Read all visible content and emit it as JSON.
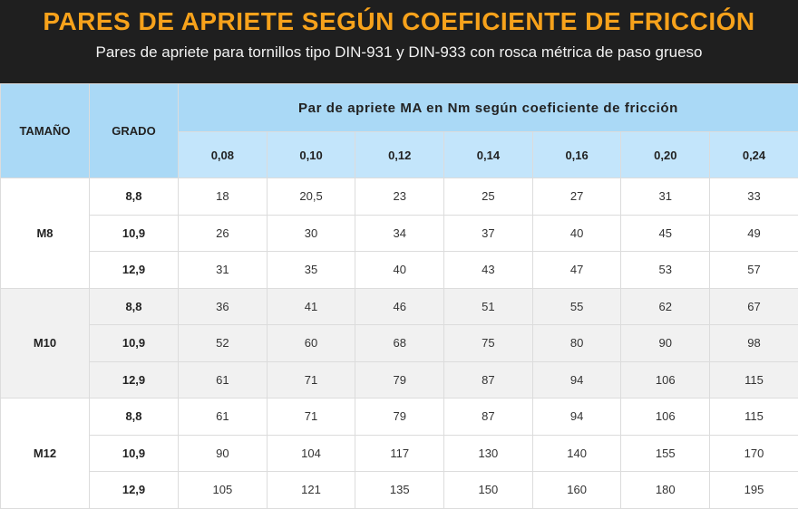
{
  "header": {
    "title": "PARES DE APRIETE SEGÚN COEFICIENTE DE FRICCIÓN",
    "subtitle": "Pares de apriete para tornillos tipo DIN-931 y DIN-933 con rosca métrica de paso grueso"
  },
  "table": {
    "size_header": "TAMAÑO",
    "grade_header": "GRADO",
    "group_header": "Par de apriete MA en Nm según coeficiente de fricción",
    "friction": [
      "0,08",
      "0,10",
      "0,12",
      "0,14",
      "0,16",
      "0,20",
      "0,24"
    ],
    "groups": [
      {
        "size": "M8",
        "rows": [
          {
            "grade": "8,8",
            "values": [
              "18",
              "20,5",
              "23",
              "25",
              "27",
              "31",
              "33"
            ]
          },
          {
            "grade": "10,9",
            "values": [
              "26",
              "30",
              "34",
              "37",
              "40",
              "45",
              "49"
            ]
          },
          {
            "grade": "12,9",
            "values": [
              "31",
              "35",
              "40",
              "43",
              "47",
              "53",
              "57"
            ]
          }
        ]
      },
      {
        "size": "M10",
        "rows": [
          {
            "grade": "8,8",
            "values": [
              "36",
              "41",
              "46",
              "51",
              "55",
              "62",
              "67"
            ]
          },
          {
            "grade": "10,9",
            "values": [
              "52",
              "60",
              "68",
              "75",
              "80",
              "90",
              "98"
            ]
          },
          {
            "grade": "12,9",
            "values": [
              "61",
              "71",
              "79",
              "87",
              "94",
              "106",
              "115"
            ]
          }
        ]
      },
      {
        "size": "M12",
        "rows": [
          {
            "grade": "8,8",
            "values": [
              "61",
              "71",
              "79",
              "87",
              "94",
              "106",
              "115"
            ]
          },
          {
            "grade": "10,9",
            "values": [
              "90",
              "104",
              "117",
              "130",
              "140",
              "155",
              "170"
            ]
          },
          {
            "grade": "12,9",
            "values": [
              "105",
              "121",
              "135",
              "150",
              "160",
              "180",
              "195"
            ]
          }
        ]
      }
    ]
  }
}
